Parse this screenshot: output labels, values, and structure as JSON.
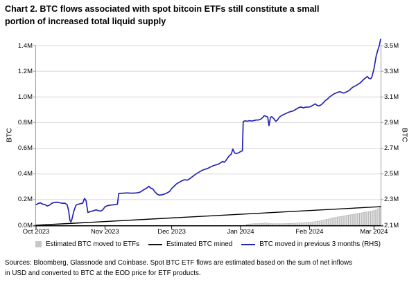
{
  "title": {
    "line1": "Chart 2. BTC flows associated with spot bitcoin ETFs still constitute a small",
    "line2": "portion of increased total liquid supply"
  },
  "legend": {
    "items": [
      {
        "label": "Estimated BTC moved to ETFs",
        "swatch": "gray-square",
        "color": "#c7c7c7"
      },
      {
        "label": "Estimated BTC mined",
        "swatch": "black-line",
        "color": "#111111"
      },
      {
        "label": "BTC moved in previous 3 months (RHS)",
        "swatch": "blue-line",
        "color": "#2424b4"
      }
    ]
  },
  "sources": {
    "line1": "Sources: Bloomberg, Glassnode and Coinbase. Spot BTC ETF flows are estimated based on the sum of net inflows",
    "line2": "in USD and converted to BTC at the EOD price for ETF products."
  },
  "chart_data": {
    "type": "bar+line",
    "unit": "million BTC",
    "x_axis": {
      "labels": [
        "Oct 2023",
        "Nov 2023",
        "Dec 2023",
        "Jan 2024",
        "Feb 2024",
        "Mar 2024"
      ],
      "tick_days": [
        0,
        31,
        61,
        92,
        123,
        152
      ],
      "range_days": [
        0,
        155
      ],
      "grid": false
    },
    "left_axis": {
      "title": "BTC",
      "ticks": [
        "0.0M",
        "0.2M",
        "0.4M",
        "0.6M",
        "0.8M",
        "1.0M",
        "1.2M",
        "1.4M"
      ],
      "min": 0,
      "max": 1.4,
      "grid": true
    },
    "right_axis": {
      "title": "BTC",
      "ticks": [
        "2.1M",
        "2.3M",
        "2.5M",
        "2.7M",
        "2.9M",
        "3.1M",
        "3.3M",
        "3.5M"
      ],
      "min": 2.1,
      "max": 3.5
    },
    "series": [
      {
        "name": "Estimated BTC moved to ETFs",
        "type": "bar",
        "axis": "left",
        "fill": "#e2e2e2",
        "stroke": "#a9a9a9",
        "points": [
          [
            95,
            0.008
          ],
          [
            96,
            0.01
          ],
          [
            97,
            0.011
          ],
          [
            98,
            0.012
          ],
          [
            99,
            0.013
          ],
          [
            100,
            0.013
          ],
          [
            101,
            0.014
          ],
          [
            102,
            0.015
          ],
          [
            103,
            0.019
          ],
          [
            104,
            0.017
          ],
          [
            105,
            0.014
          ],
          [
            106,
            0.013
          ],
          [
            107,
            0.012
          ],
          [
            108,
            0.012
          ],
          [
            109,
            0.013
          ],
          [
            110,
            0.012
          ],
          [
            111,
            0.013
          ],
          [
            112,
            0.013
          ],
          [
            113,
            0.014
          ],
          [
            114,
            0.015
          ],
          [
            115,
            0.015
          ],
          [
            116,
            0.016
          ],
          [
            117,
            0.017
          ],
          [
            118,
            0.018
          ],
          [
            119,
            0.019
          ],
          [
            120,
            0.02
          ],
          [
            121,
            0.021
          ],
          [
            122,
            0.022
          ],
          [
            123,
            0.023
          ],
          [
            124,
            0.025
          ],
          [
            125,
            0.027
          ],
          [
            126,
            0.029
          ],
          [
            127,
            0.032
          ],
          [
            128,
            0.035
          ],
          [
            129,
            0.039
          ],
          [
            130,
            0.043
          ],
          [
            131,
            0.047
          ],
          [
            132,
            0.051
          ],
          [
            133,
            0.055
          ],
          [
            134,
            0.059
          ],
          [
            135,
            0.063
          ],
          [
            136,
            0.066
          ],
          [
            137,
            0.069
          ],
          [
            138,
            0.072
          ],
          [
            139,
            0.075
          ],
          [
            140,
            0.078
          ],
          [
            141,
            0.081
          ],
          [
            142,
            0.084
          ],
          [
            143,
            0.087
          ],
          [
            144,
            0.09
          ],
          [
            145,
            0.093
          ],
          [
            146,
            0.096
          ],
          [
            147,
            0.099
          ],
          [
            148,
            0.102
          ],
          [
            149,
            0.105
          ],
          [
            150,
            0.108
          ],
          [
            151,
            0.111
          ],
          [
            152,
            0.115
          ],
          [
            153,
            0.12
          ],
          [
            154,
            0.13
          ],
          [
            155,
            0.15
          ]
        ]
      },
      {
        "name": "Estimated BTC mined",
        "type": "line",
        "axis": "left",
        "color": "#000000",
        "points": [
          [
            0,
            0
          ],
          [
            155,
            0.145
          ]
        ]
      },
      {
        "name": "BTC moved in previous 3 months (RHS)",
        "type": "line",
        "axis": "right",
        "color": "#2424b4",
        "points": [
          [
            0,
            2.26
          ],
          [
            1,
            2.27
          ],
          [
            2,
            2.275
          ],
          [
            3,
            2.264
          ],
          [
            4,
            2.262
          ],
          [
            5,
            2.25
          ],
          [
            6,
            2.256
          ],
          [
            7,
            2.27
          ],
          [
            8,
            2.277
          ],
          [
            9,
            2.28
          ],
          [
            10,
            2.278
          ],
          [
            11,
            2.274
          ],
          [
            12,
            2.272
          ],
          [
            13,
            2.272
          ],
          [
            14,
            2.26
          ],
          [
            14.7,
            2.21
          ],
          [
            15.2,
            2.14
          ],
          [
            15.7,
            2.126
          ],
          [
            16.2,
            2.15
          ],
          [
            17,
            2.21
          ],
          [
            18,
            2.258
          ],
          [
            19,
            2.264
          ],
          [
            20,
            2.268
          ],
          [
            21,
            2.272
          ],
          [
            21.8,
            2.31
          ],
          [
            22.5,
            2.292
          ],
          [
            23.3,
            2.2
          ],
          [
            24,
            2.204
          ],
          [
            25,
            2.21
          ],
          [
            26,
            2.214
          ],
          [
            27,
            2.22
          ],
          [
            28,
            2.214
          ],
          [
            29,
            2.21
          ],
          [
            30,
            2.22
          ],
          [
            31,
            2.244
          ],
          [
            32,
            2.252
          ],
          [
            33,
            2.256
          ],
          [
            34,
            2.258
          ],
          [
            35,
            2.26
          ],
          [
            36.6,
            2.264
          ],
          [
            37.2,
            2.348
          ],
          [
            39,
            2.35
          ],
          [
            41,
            2.352
          ],
          [
            43,
            2.35
          ],
          [
            45,
            2.352
          ],
          [
            46,
            2.354
          ],
          [
            47,
            2.36
          ],
          [
            48,
            2.372
          ],
          [
            49,
            2.382
          ],
          [
            50,
            2.392
          ],
          [
            50.7,
            2.404
          ],
          [
            51.5,
            2.39
          ],
          [
            52.5,
            2.384
          ],
          [
            53.5,
            2.36
          ],
          [
            54.5,
            2.342
          ],
          [
            55.5,
            2.335
          ],
          [
            56.5,
            2.337
          ],
          [
            57.5,
            2.342
          ],
          [
            58.5,
            2.348
          ],
          [
            60,
            2.362
          ],
          [
            61,
            2.386
          ],
          [
            62,
            2.402
          ],
          [
            63,
            2.42
          ],
          [
            64,
            2.431
          ],
          [
            65,
            2.441
          ],
          [
            66,
            2.45
          ],
          [
            67,
            2.455
          ],
          [
            68,
            2.451
          ],
          [
            69,
            2.461
          ],
          [
            70,
            2.475
          ],
          [
            71,
            2.488
          ],
          [
            72,
            2.5
          ],
          [
            73,
            2.511
          ],
          [
            74,
            2.521
          ],
          [
            75,
            2.53
          ],
          [
            76,
            2.536
          ],
          [
            77,
            2.541
          ],
          [
            78,
            2.55
          ],
          [
            79,
            2.558
          ],
          [
            80,
            2.566
          ],
          [
            81,
            2.571
          ],
          [
            82,
            2.576
          ],
          [
            83,
            2.586
          ],
          [
            84,
            2.598
          ],
          [
            84.6,
            2.59
          ],
          [
            85.3,
            2.602
          ],
          [
            86,
            2.62
          ],
          [
            87,
            2.644
          ],
          [
            87.8,
            2.654
          ],
          [
            88.5,
            2.694
          ],
          [
            89.3,
            2.664
          ],
          [
            90,
            2.659
          ],
          [
            91,
            2.664
          ],
          [
            92,
            2.674
          ],
          [
            92.8,
            2.68
          ],
          [
            93.2,
            2.908
          ],
          [
            94,
            2.914
          ],
          [
            95,
            2.911
          ],
          [
            96,
            2.915
          ],
          [
            97,
            2.912
          ],
          [
            98,
            2.916
          ],
          [
            99,
            2.92
          ],
          [
            100,
            2.92
          ],
          [
            101,
            2.926
          ],
          [
            102,
            2.94
          ],
          [
            102.6,
            2.954
          ],
          [
            103.3,
            2.95
          ],
          [
            104.2,
            2.944
          ],
          [
            104.8,
            2.876
          ],
          [
            105.4,
            2.94
          ],
          [
            106,
            2.946
          ],
          [
            107,
            2.93
          ],
          [
            107.8,
            2.91
          ],
          [
            108.6,
            2.92
          ],
          [
            109.5,
            2.944
          ],
          [
            110.5,
            2.955
          ],
          [
            111.5,
            2.964
          ],
          [
            112.5,
            2.972
          ],
          [
            113.5,
            2.98
          ],
          [
            114.5,
            2.986
          ],
          [
            115.5,
            2.99
          ],
          [
            116.5,
            3.0
          ],
          [
            117.5,
            3.01
          ],
          [
            118.5,
            3.02
          ],
          [
            119.5,
            3.021
          ],
          [
            120.3,
            3.014
          ],
          [
            121,
            3.02
          ],
          [
            122,
            3.021
          ],
          [
            123,
            3.022
          ],
          [
            124,
            3.03
          ],
          [
            125,
            3.04
          ],
          [
            125.6,
            3.046
          ],
          [
            126.3,
            3.036
          ],
          [
            127,
            3.03
          ],
          [
            128,
            3.036
          ],
          [
            129,
            3.05
          ],
          [
            130,
            3.07
          ],
          [
            131,
            3.082
          ],
          [
            132,
            3.1
          ],
          [
            133,
            3.112
          ],
          [
            134,
            3.124
          ],
          [
            135,
            3.131
          ],
          [
            136,
            3.138
          ],
          [
            136.8,
            3.141
          ],
          [
            137.6,
            3.134
          ],
          [
            138.4,
            3.13
          ],
          [
            139.2,
            3.136
          ],
          [
            140,
            3.142
          ],
          [
            141,
            3.152
          ],
          [
            142,
            3.17
          ],
          [
            143,
            3.181
          ],
          [
            144,
            3.19
          ],
          [
            145,
            3.2
          ],
          [
            146,
            3.212
          ],
          [
            147,
            3.23
          ],
          [
            148,
            3.246
          ],
          [
            149,
            3.26
          ],
          [
            149.7,
            3.246
          ],
          [
            150.4,
            3.241
          ],
          [
            151,
            3.252
          ],
          [
            152,
            3.32
          ],
          [
            153,
            3.42
          ],
          [
            153.8,
            3.47
          ],
          [
            154.4,
            3.5
          ],
          [
            155,
            3.55
          ]
        ]
      }
    ]
  }
}
